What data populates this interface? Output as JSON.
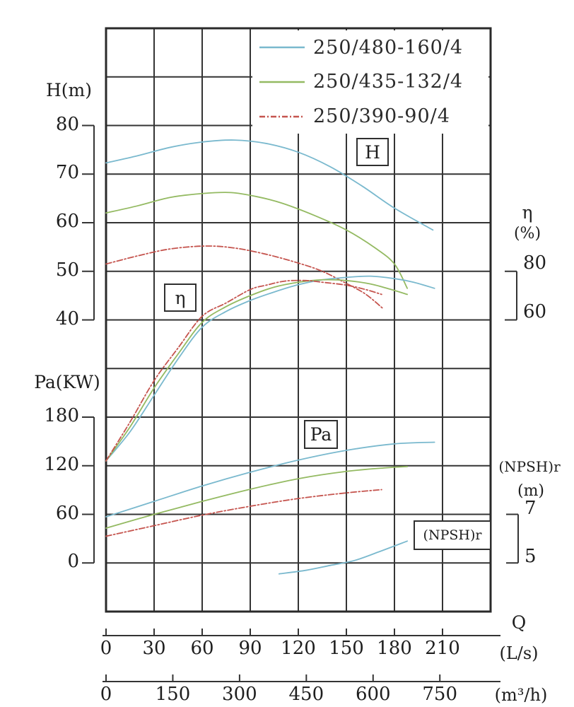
{
  "labels": {
    "h_axis_title": "H(m)",
    "pa_axis_title": "Pa(KW)",
    "eta_title": "η",
    "eta_unit": "(%)",
    "npsh_title": "(NPSH)r",
    "npsh_unit": "(m)",
    "q_title": "Q",
    "q_unit_ls": "(L/s)",
    "q_unit_m3h": "(m³/h)"
  },
  "boxes": {
    "h": "H",
    "eta": "η",
    "pa": "Pa",
    "npsh": "(NPSH)r"
  },
  "legend": {
    "items": [
      {
        "label": "250/480-160/4",
        "color": "blue",
        "dash": "solid"
      },
      {
        "label": "250/435-132/4",
        "color": "green",
        "dash": "solid"
      },
      {
        "label": "250/390-90/4",
        "color": "red",
        "dash": "dashdot"
      }
    ]
  },
  "chart_data": {
    "type": "line",
    "title": "Pump performance curves",
    "grid": "on",
    "colors": {
      "blue": "#7ab9ce",
      "green": "#94ba62",
      "red": "#c5544e"
    },
    "x_axis": {
      "label": "Q",
      "units": [
        "L/s",
        "m³/h"
      ],
      "range_ls": [
        0,
        240
      ],
      "ls_ticks": [
        0,
        30,
        60,
        90,
        120,
        150,
        180,
        210
      ],
      "m3h_ticks": [
        0,
        150,
        300,
        450,
        600,
        750
      ],
      "m3h_per_ls": 3.6
    },
    "y_axes": {
      "H": {
        "label": "H(m)",
        "ticks": [
          80,
          70,
          60,
          50,
          40
        ]
      },
      "Pa": {
        "label": "Pa(KW)",
        "ticks": [
          180,
          120,
          60,
          0
        ]
      },
      "eta": {
        "label": "η(%)",
        "ticks": [
          80,
          60
        ]
      },
      "NPSH": {
        "label": "(NPSH)r(m)",
        "ticks": [
          7,
          5
        ]
      }
    },
    "series": [
      {
        "id": "h-480",
        "model": "250/480-160/4",
        "quantity": "H",
        "color": "blue",
        "dash": "solid",
        "points": [
          [
            0,
            72.3
          ],
          [
            20,
            73.8
          ],
          [
            40,
            75.5
          ],
          [
            60,
            76.6
          ],
          [
            80,
            77
          ],
          [
            100,
            76.3
          ],
          [
            120,
            74.5
          ],
          [
            140,
            71.5
          ],
          [
            160,
            67.5
          ],
          [
            180,
            63
          ],
          [
            204,
            58.5
          ]
        ]
      },
      {
        "id": "h-435",
        "model": "250/435-132/4",
        "quantity": "H",
        "color": "green",
        "dash": "solid",
        "points": [
          [
            0,
            62
          ],
          [
            20,
            63.5
          ],
          [
            40,
            65.2
          ],
          [
            60,
            66
          ],
          [
            78,
            66.2
          ],
          [
            95,
            65.3
          ],
          [
            110,
            64
          ],
          [
            130,
            61.5
          ],
          [
            150,
            58.5
          ],
          [
            168,
            54.8
          ],
          [
            180,
            51.5
          ],
          [
            188,
            46.5
          ]
        ]
      },
      {
        "id": "h-390",
        "model": "250/390-90/4",
        "quantity": "H",
        "color": "red",
        "dash": "dashdot",
        "points": [
          [
            0,
            51.5
          ],
          [
            20,
            53.2
          ],
          [
            40,
            54.6
          ],
          [
            62,
            55.2
          ],
          [
            80,
            54.8
          ],
          [
            100,
            53.5
          ],
          [
            120,
            51.7
          ],
          [
            135,
            50
          ],
          [
            150,
            47.5
          ],
          [
            162,
            45.3
          ],
          [
            173,
            42.3
          ]
        ]
      },
      {
        "id": "eta-480",
        "model": "250/480-160/4",
        "quantity": "eta",
        "color": "blue",
        "dash": "solid",
        "points": [
          [
            0,
            2
          ],
          [
            15,
            14
          ],
          [
            30,
            29
          ],
          [
            45,
            44
          ],
          [
            60,
            57
          ],
          [
            75,
            63.5
          ],
          [
            90,
            68
          ],
          [
            105,
            71.5
          ],
          [
            120,
            74.5
          ],
          [
            135,
            76.5
          ],
          [
            150,
            77.5
          ],
          [
            165,
            78
          ],
          [
            180,
            77
          ],
          [
            192,
            75.5
          ],
          [
            205,
            73
          ]
        ]
      },
      {
        "id": "eta-435",
        "model": "250/435-132/4",
        "quantity": "eta",
        "color": "green",
        "dash": "solid",
        "points": [
          [
            0,
            2
          ],
          [
            15,
            16
          ],
          [
            30,
            32
          ],
          [
            45,
            46
          ],
          [
            60,
            59
          ],
          [
            75,
            65.5
          ],
          [
            90,
            70
          ],
          [
            105,
            73.5
          ],
          [
            120,
            75.5
          ],
          [
            135,
            76.5
          ],
          [
            150,
            76.2
          ],
          [
            165,
            74.8
          ],
          [
            178,
            72.5
          ],
          [
            188,
            70.5
          ]
        ]
      },
      {
        "id": "eta-390",
        "model": "250/390-90/4",
        "quantity": "eta",
        "color": "red",
        "dash": "dashdot",
        "points": [
          [
            0,
            2
          ],
          [
            15,
            18
          ],
          [
            30,
            35
          ],
          [
            45,
            48.5
          ],
          [
            60,
            61.5
          ],
          [
            75,
            67
          ],
          [
            90,
            72.5
          ],
          [
            100,
            74.3
          ],
          [
            112,
            76
          ],
          [
            125,
            76.2
          ],
          [
            135,
            75.5
          ],
          [
            150,
            74.3
          ],
          [
            162,
            72.5
          ],
          [
            172,
            70.5
          ]
        ]
      },
      {
        "id": "pa-480",
        "model": "250/480-160/4",
        "quantity": "Pa",
        "color": "blue",
        "dash": "solid",
        "points": [
          [
            0,
            57
          ],
          [
            30,
            76
          ],
          [
            60,
            95
          ],
          [
            90,
            112
          ],
          [
            120,
            127
          ],
          [
            150,
            139
          ],
          [
            180,
            147
          ],
          [
            205,
            149
          ]
        ]
      },
      {
        "id": "pa-435",
        "model": "250/435-132/4",
        "quantity": "Pa",
        "color": "green",
        "dash": "solid",
        "points": [
          [
            0,
            43
          ],
          [
            30,
            60
          ],
          [
            60,
            76
          ],
          [
            90,
            91
          ],
          [
            120,
            104
          ],
          [
            150,
            113
          ],
          [
            175,
            117.5
          ],
          [
            188,
            119
          ]
        ]
      },
      {
        "id": "pa-390",
        "model": "250/390-90/4",
        "quantity": "Pa",
        "color": "red",
        "dash": "dashdot",
        "points": [
          [
            0,
            33
          ],
          [
            30,
            46
          ],
          [
            60,
            59
          ],
          [
            90,
            70
          ],
          [
            120,
            79.5
          ],
          [
            150,
            86.5
          ],
          [
            172,
            90.5
          ]
        ]
      },
      {
        "id": "npshr-480",
        "model": "250/480-160/4",
        "quantity": "NPSH",
        "color": "blue",
        "dash": "solid",
        "points": [
          [
            108,
            4.55
          ],
          [
            125,
            4.7
          ],
          [
            140,
            4.9
          ],
          [
            155,
            5.1
          ],
          [
            170,
            5.45
          ],
          [
            188,
            5.9
          ]
        ]
      }
    ]
  }
}
